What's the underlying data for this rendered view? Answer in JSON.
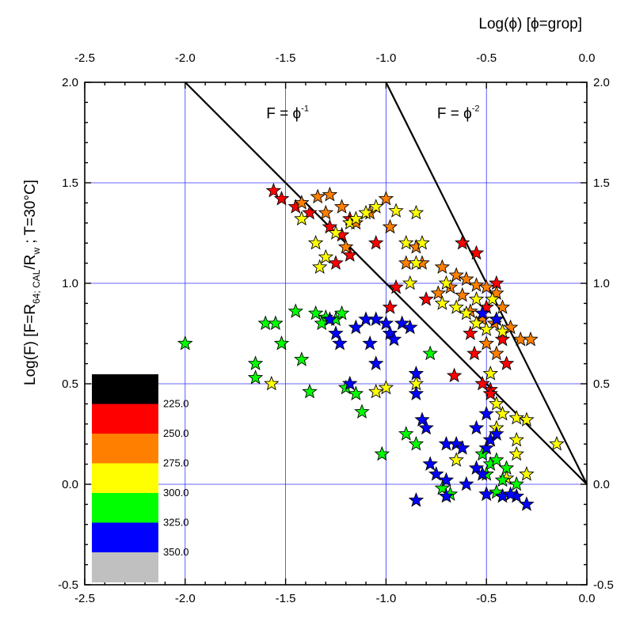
{
  "chart_data": {
    "type": "scatter",
    "title": "",
    "x_axis_bottom": {
      "range": [
        -2.5,
        0.0
      ],
      "ticks": [
        "-2.5",
        "-2.0",
        "-1.5",
        "-1.0",
        "-0.5",
        "0.0"
      ]
    },
    "x_axis_top": {
      "label": "Log(ϕ) [ϕ=grop]",
      "range": [
        -2.5,
        0.0
      ],
      "ticks": [
        "-2.5",
        "-2.0",
        "-1.5",
        "-1.0",
        "-0.5",
        "0.0"
      ]
    },
    "y_axis": {
      "label_main": "Log(F) [F=R",
      "label_sub1": "64; CAL",
      "label_mid": "/R",
      "label_sub2": "w",
      "label_end": " ; T=30°C]",
      "range": [
        -0.5,
        2.0
      ],
      "ticks": [
        "-0.5",
        "0.0",
        "0.5",
        "1.0",
        "1.5",
        "2.0"
      ]
    },
    "grid": true,
    "reference_lines": [
      {
        "label_base": "F = ϕ",
        "label_exp": "-1",
        "x": [
          -2.0,
          0.0
        ],
        "y": [
          2.0,
          0.0
        ]
      },
      {
        "label_base": "F = ϕ",
        "label_exp": "-2",
        "x": [
          -1.0,
          0.0
        ],
        "y": [
          2.0,
          0.0
        ]
      }
    ],
    "color_scale": {
      "placement": "bottom-left",
      "bins": [
        {
          "color": "#000000"
        },
        {
          "color": "#ff0000",
          "label": "225.0"
        },
        {
          "color": "#ff8000",
          "label": "250.0"
        },
        {
          "color": "#ffff00",
          "label": "275.0"
        },
        {
          "color": "#00ff00",
          "label": "300.0"
        },
        {
          "color": "#0000ff",
          "label": "325.0"
        },
        {
          "color": "#c0c0c0",
          "label": "350.0"
        }
      ]
    },
    "series": [
      {
        "color": "#ff0000",
        "points": [
          [
            -1.56,
            1.46
          ],
          [
            -1.52,
            1.42
          ],
          [
            -1.45,
            1.38
          ],
          [
            -1.38,
            1.35
          ],
          [
            -1.28,
            1.28
          ],
          [
            -1.22,
            1.24
          ],
          [
            -1.18,
            1.14
          ],
          [
            -1.25,
            1.1
          ],
          [
            -1.18,
            1.32
          ],
          [
            -1.05,
            1.2
          ],
          [
            -0.95,
            0.98
          ],
          [
            -0.8,
            0.92
          ],
          [
            -0.98,
            0.88
          ],
          [
            -0.62,
            1.2
          ],
          [
            -0.55,
            1.15
          ],
          [
            -0.45,
            1.0
          ],
          [
            -0.5,
            0.88
          ],
          [
            -0.58,
            0.75
          ],
          [
            -0.42,
            0.72
          ],
          [
            -0.4,
            0.6
          ],
          [
            -0.66,
            0.54
          ],
          [
            -0.48,
            0.47
          ],
          [
            -0.52,
            0.5
          ],
          [
            -0.56,
            0.65
          ],
          [
            -0.48,
            0.45
          ]
        ]
      },
      {
        "color": "#ff8000",
        "points": [
          [
            -1.42,
            1.4
          ],
          [
            -1.34,
            1.43
          ],
          [
            -1.28,
            1.44
          ],
          [
            -1.3,
            1.35
          ],
          [
            -1.22,
            1.38
          ],
          [
            -1.15,
            1.3
          ],
          [
            -1.2,
            1.18
          ],
          [
            -1.08,
            1.35
          ],
          [
            -1.0,
            1.42
          ],
          [
            -0.98,
            1.28
          ],
          [
            -0.9,
            1.1
          ],
          [
            -0.85,
            1.18
          ],
          [
            -0.82,
            1.1
          ],
          [
            -0.72,
            1.08
          ],
          [
            -0.74,
            0.95
          ],
          [
            -0.68,
            0.98
          ],
          [
            -0.65,
            1.04
          ],
          [
            -0.6,
            1.02
          ],
          [
            -0.62,
            0.94
          ],
          [
            -0.55,
            0.99
          ],
          [
            -0.5,
            0.98
          ],
          [
            -0.45,
            0.95
          ],
          [
            -0.42,
            0.88
          ],
          [
            -0.38,
            0.78
          ],
          [
            -0.33,
            0.72
          ],
          [
            -0.28,
            0.72
          ],
          [
            -0.58,
            0.86
          ],
          [
            -0.52,
            0.82
          ],
          [
            -0.46,
            0.8
          ],
          [
            -0.5,
            0.7
          ],
          [
            -0.45,
            0.65
          ]
        ]
      },
      {
        "color": "#ffff00",
        "points": [
          [
            -1.42,
            1.32
          ],
          [
            -1.35,
            1.2
          ],
          [
            -1.3,
            1.13
          ],
          [
            -1.33,
            1.08
          ],
          [
            -1.25,
            1.25
          ],
          [
            -1.18,
            1.3
          ],
          [
            -1.15,
            1.32
          ],
          [
            -1.1,
            1.35
          ],
          [
            -1.05,
            1.38
          ],
          [
            -0.95,
            1.36
          ],
          [
            -0.85,
            1.35
          ],
          [
            -0.9,
            1.2
          ],
          [
            -0.85,
            1.1
          ],
          [
            -0.82,
            1.2
          ],
          [
            -0.88,
            1.0
          ],
          [
            -0.7,
            1.0
          ],
          [
            -0.72,
            0.9
          ],
          [
            -0.65,
            0.88
          ],
          [
            -0.6,
            0.85
          ],
          [
            -0.55,
            0.8
          ],
          [
            -0.5,
            0.77
          ],
          [
            -0.45,
            0.82
          ],
          [
            -0.42,
            0.76
          ],
          [
            -0.55,
            0.92
          ],
          [
            -0.47,
            0.92
          ],
          [
            -0.48,
            0.55
          ],
          [
            -0.45,
            0.4
          ],
          [
            -0.35,
            0.33
          ],
          [
            -0.3,
            0.32
          ],
          [
            -0.35,
            0.22
          ],
          [
            -0.15,
            0.2
          ],
          [
            -0.45,
            0.28
          ],
          [
            -0.42,
            0.35
          ],
          [
            -1.0,
            0.48
          ],
          [
            -1.05,
            0.46
          ],
          [
            -0.85,
            0.5
          ],
          [
            -0.65,
            0.12
          ],
          [
            -0.35,
            0.15
          ],
          [
            -0.4,
            0.03
          ],
          [
            -0.3,
            0.05
          ],
          [
            -1.57,
            0.5
          ]
        ]
      },
      {
        "color": "#00ff00",
        "points": [
          [
            -2.0,
            0.7
          ],
          [
            -1.65,
            0.6
          ],
          [
            -1.65,
            0.53
          ],
          [
            -1.6,
            0.8
          ],
          [
            -1.55,
            0.8
          ],
          [
            -1.52,
            0.7
          ],
          [
            -1.45,
            0.86
          ],
          [
            -1.42,
            0.62
          ],
          [
            -1.38,
            0.46
          ],
          [
            -1.35,
            0.85
          ],
          [
            -1.3,
            0.83
          ],
          [
            -1.32,
            0.8
          ],
          [
            -1.25,
            0.82
          ],
          [
            -1.22,
            0.85
          ],
          [
            -1.2,
            0.48
          ],
          [
            -1.15,
            0.45
          ],
          [
            -1.12,
            0.36
          ],
          [
            -1.02,
            0.15
          ],
          [
            -0.9,
            0.25
          ],
          [
            -0.85,
            0.2
          ],
          [
            -0.78,
            0.65
          ],
          [
            -0.72,
            -0.02
          ],
          [
            -0.68,
            -0.05
          ],
          [
            -0.52,
            0.15
          ],
          [
            -0.48,
            0.1
          ],
          [
            -0.45,
            0.12
          ],
          [
            -0.5,
            0.05
          ],
          [
            -0.4,
            0.08
          ],
          [
            -0.5,
            -0.05
          ],
          [
            -0.45,
            -0.04
          ],
          [
            -0.35,
            0.0
          ],
          [
            -0.42,
            0.02
          ]
        ]
      },
      {
        "color": "#0000ff",
        "points": [
          [
            -1.28,
            0.82
          ],
          [
            -1.25,
            0.75
          ],
          [
            -1.23,
            0.7
          ],
          [
            -1.15,
            0.78
          ],
          [
            -1.1,
            0.82
          ],
          [
            -1.05,
            0.82
          ],
          [
            -1.0,
            0.8
          ],
          [
            -0.98,
            0.75
          ],
          [
            -0.96,
            0.72
          ],
          [
            -0.92,
            0.8
          ],
          [
            -0.88,
            0.78
          ],
          [
            -0.85,
            0.45
          ],
          [
            -0.82,
            0.32
          ],
          [
            -0.8,
            0.28
          ],
          [
            -0.7,
            0.2
          ],
          [
            -0.65,
            0.2
          ],
          [
            -0.62,
            0.18
          ],
          [
            -0.78,
            0.1
          ],
          [
            -0.75,
            0.05
          ],
          [
            -0.7,
            0.02
          ],
          [
            -0.6,
            0.0
          ],
          [
            -0.55,
            0.08
          ],
          [
            -0.52,
            0.05
          ],
          [
            -0.5,
            -0.05
          ],
          [
            -0.42,
            -0.06
          ],
          [
            -0.35,
            -0.06
          ],
          [
            -0.3,
            -0.1
          ],
          [
            -0.5,
            0.18
          ],
          [
            -0.48,
            0.22
          ],
          [
            -0.55,
            0.28
          ],
          [
            -0.5,
            0.35
          ],
          [
            -0.45,
            0.25
          ],
          [
            -0.52,
            0.85
          ],
          [
            -0.45,
            0.82
          ],
          [
            -0.38,
            -0.05
          ],
          [
            -0.85,
            -0.08
          ],
          [
            -0.7,
            -0.06
          ],
          [
            -1.08,
            0.7
          ],
          [
            -1.05,
            0.6
          ],
          [
            -0.85,
            0.55
          ],
          [
            -1.18,
            0.5
          ]
        ]
      }
    ]
  }
}
